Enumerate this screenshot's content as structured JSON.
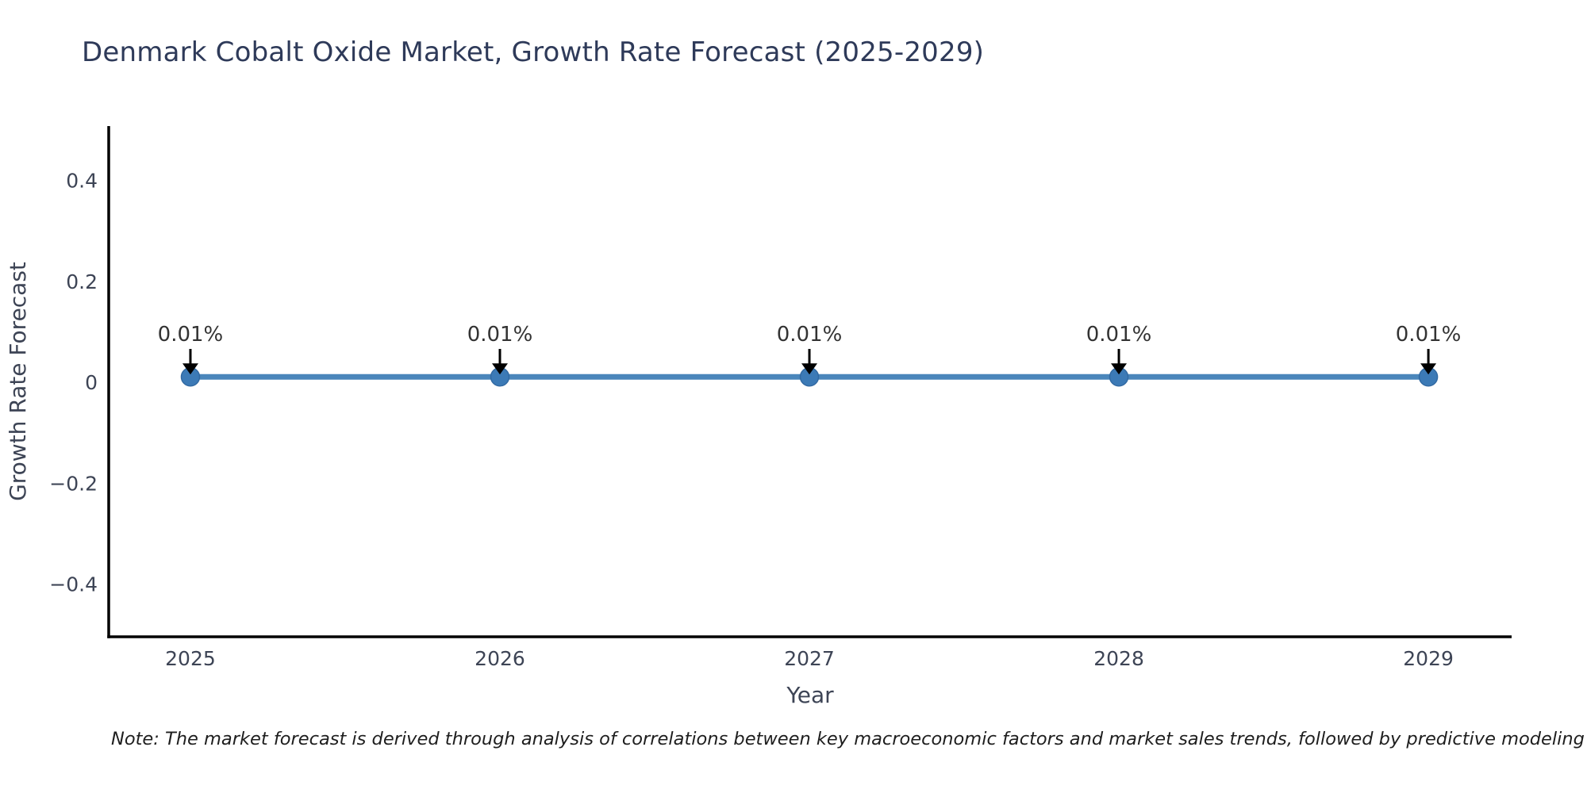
{
  "chart_data": {
    "type": "line",
    "title": "Denmark Cobalt Oxide Market, Growth Rate Forecast (2025-2029)",
    "x": [
      2025,
      2026,
      2027,
      2028,
      2029
    ],
    "series": [
      {
        "name": "Growth Rate Forecast",
        "values": [
          0.01,
          0.01,
          0.01,
          0.01,
          0.01
        ],
        "point_labels": [
          "0.01%",
          "0.01%",
          "0.01%",
          "0.01%",
          "0.01%"
        ]
      }
    ],
    "xlabel": "Year",
    "ylabel": "Growth Rate Forecast",
    "xlim": [
      2024.736,
      2029.269
    ],
    "ylim": [
      -0.505,
      0.507
    ],
    "xticks": [
      {
        "value": 2025,
        "label": "2025"
      },
      {
        "value": 2026,
        "label": "2026"
      },
      {
        "value": 2027,
        "label": "2027"
      },
      {
        "value": 2028,
        "label": "2028"
      },
      {
        "value": 2029,
        "label": "2029"
      }
    ],
    "yticks": [
      {
        "value": 0.4,
        "label": "0.4"
      },
      {
        "value": 0.2,
        "label": "0.2"
      },
      {
        "value": 0,
        "label": "0"
      },
      {
        "value": -0.2,
        "label": "−0.2"
      },
      {
        "value": -0.4,
        "label": "−0.4"
      }
    ],
    "grid": false,
    "legend": "none",
    "colors": {
      "line": "#4a86bb",
      "marker": "#3c7ab6",
      "marker_edge": "#326aa3",
      "axis": "#000000",
      "title_text": "#2e3a59",
      "tick_text": "#3d4455",
      "axis_label_text": "#3d4455",
      "annotation_text": "#333333",
      "arrow": "#000000",
      "background": "#ffffff"
    }
  },
  "note": "Note: The market forecast is derived through analysis of correlations between key macroeconomic factors and market sales trends, followed by predictive modeling to project future sales"
}
